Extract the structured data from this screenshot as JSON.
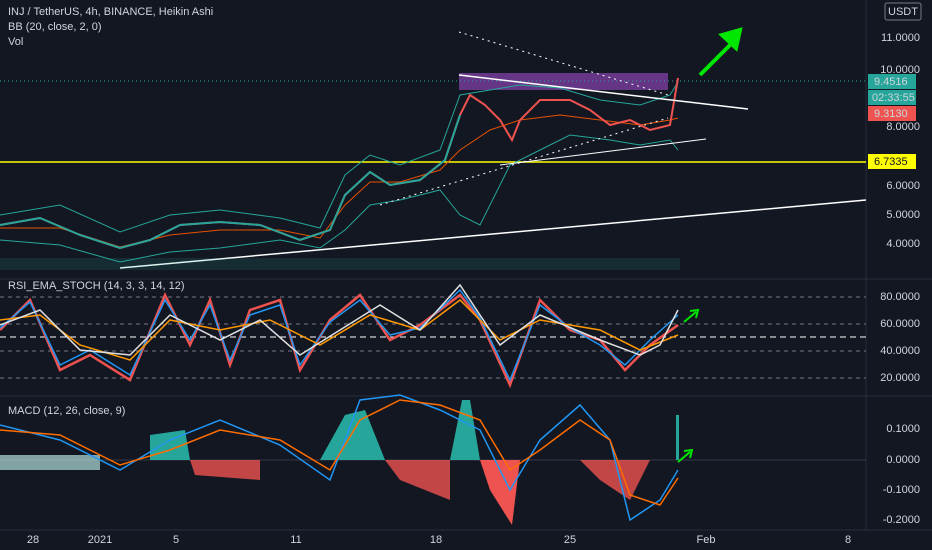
{
  "header": {
    "symbol": "INJ / TetherUS, 4h, BINANCE, Heikin Ashi",
    "indicator": "BB (20, close, 2, 0)",
    "volume": "Vol"
  },
  "currency": "USDT",
  "price_axis": [
    "11.0000",
    "10.0000",
    "8.0000",
    "6.0000",
    "5.0000",
    "4.0000"
  ],
  "price_badges": {
    "last": "9.4516",
    "countdown": "02:33:55",
    "bb": "9.3130",
    "level": "6.7335"
  },
  "rsi": {
    "label": "RSI_EMA_STOCH (14, 3, 3, 14, 12)",
    "axis": [
      "80.0000",
      "60.0000",
      "40.0000",
      "20.0000"
    ]
  },
  "macd": {
    "label": "MACD (12, 26, close, 9)",
    "axis": [
      "0.1000",
      "0.0000",
      "-0.1000",
      "-0.2000"
    ]
  },
  "time_axis": [
    "28",
    "2021",
    "5",
    "11",
    "18",
    "25",
    "Feb",
    "8"
  ]
}
